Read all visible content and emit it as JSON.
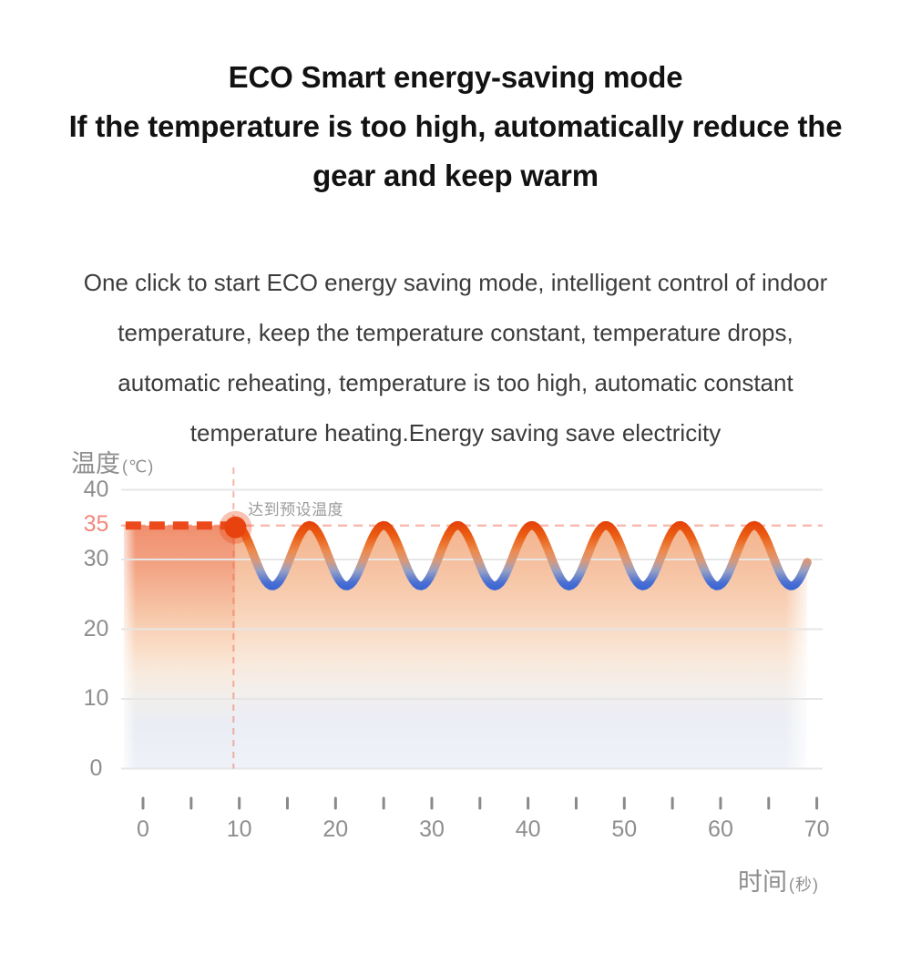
{
  "title": {
    "lines": [
      "ECO Smart energy-saving mode",
      "If the temperature is too high, automatically reduce the",
      "gear and keep warm"
    ]
  },
  "body": {
    "lines": [
      "One click to start ECO energy saving mode, intelligent control of indoor",
      "temperature, keep the temperature constant, temperature drops,",
      "automatic reheating, temperature is too high, automatic constant",
      "temperature heating.Energy saving save electricity"
    ]
  },
  "chart_data": {
    "type": "line",
    "y_axis": {
      "title": "温度",
      "unit": "(℃)",
      "ticks": [
        {
          "value": 40,
          "highlight": false
        },
        {
          "value": 35,
          "highlight": true
        },
        {
          "value": 30,
          "highlight": false
        },
        {
          "value": 20,
          "highlight": false
        },
        {
          "value": 10,
          "highlight": false
        },
        {
          "value": 0,
          "highlight": false
        }
      ],
      "gridline_values": [
        40,
        30,
        20,
        10,
        0
      ],
      "range": [
        0,
        43
      ]
    },
    "x_axis": {
      "title": "时间",
      "unit": "(秒)",
      "labeled_ticks": [
        0,
        10,
        20,
        30,
        40,
        50,
        60,
        70
      ],
      "minor_tick_step": 5,
      "minor_tick_range": [
        0,
        70
      ],
      "range": [
        -2.3,
        70.6
      ]
    },
    "preset_temperature": 35,
    "annotation": {
      "text": "达到预设温度",
      "t": 10.9,
      "temp": 39.0
    },
    "event_marker": {
      "t": 9.6,
      "temp": 34.6
    },
    "event_vline": {
      "t": 9.4,
      "temp_top": 43.2,
      "temp_bottom": 0
    },
    "series": [
      {
        "name": "preheat-constant",
        "style": "thick-dashed",
        "temp": 35,
        "t_start": -2.0,
        "t_end": 9.0
      },
      {
        "name": "eco-oscillation",
        "style": "gradient-wave",
        "t_start": 9.6,
        "t_end": 69.0,
        "period_s": 7.7,
        "temp_max": 34.9,
        "temp_min": 26.2,
        "starts_at": "max"
      }
    ],
    "colors": {
      "hot": "#e8430e",
      "warm_orange": "#f07a2e",
      "cold_blue": "#2f5fd6",
      "preset_dash": "#ed6a4e",
      "axis_text": "#8e8e8e",
      "highlight_tick_text": "#f0897c",
      "annotation_text": "#9b9b9b",
      "gridline": "#e6e6e6"
    }
  }
}
